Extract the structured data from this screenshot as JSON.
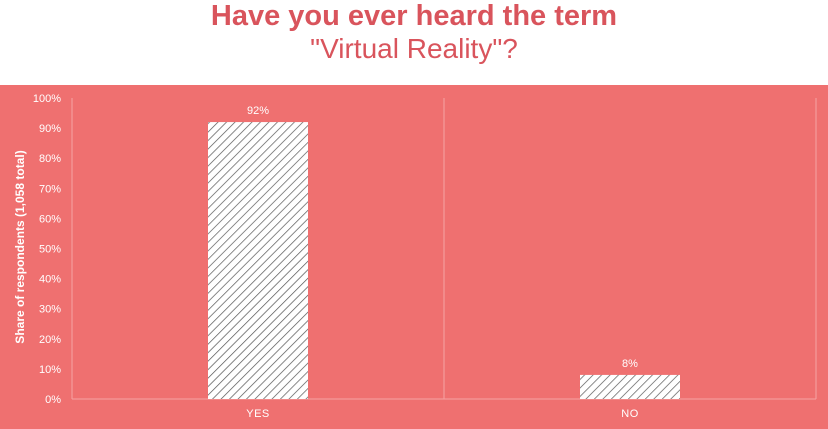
{
  "title": {
    "line1": "Have you ever heard the term",
    "line2": "\"Virtual Reality\"?"
  },
  "colors": {
    "title": "#d9545c",
    "panel": "#ef7070",
    "bar_hatch": "#555555",
    "text": "#ffffff"
  },
  "chart_data": {
    "type": "bar",
    "categories": [
      "YES",
      "NO"
    ],
    "values": [
      92,
      8
    ],
    "value_labels": [
      "92%",
      "8%"
    ],
    "ylabel": "Share of respondents (1,058 total)",
    "ylim": [
      0,
      100
    ],
    "yticks": [
      "0%",
      "10%",
      "20%",
      "30%",
      "40%",
      "50%",
      "60%",
      "70%",
      "80%",
      "90%",
      "100%"
    ],
    "grid": false,
    "bar_fill": "hatched"
  }
}
